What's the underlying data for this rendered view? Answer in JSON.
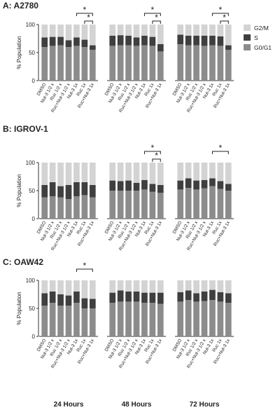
{
  "chart_data": [
    {
      "type": "bar",
      "stacked": true,
      "title": "A: A2780",
      "ylabel": "% Population",
      "categories": [
        "DMSO",
        "Nut-3 1/2 x",
        "Ruc 1/2 x",
        "Ruc+Nut-3 1/2 x",
        "Nut-3 1x",
        "Ruc 1x",
        "Ruc+Nut-3 1x",
        "DMSO",
        "Nut-3 1/2 x",
        "Ruc 1/2 x",
        "Ruc+Nut-3 1/2 x",
        "Nut-3 1x",
        "Ruc 1x",
        "Ruc+Nut-3 1x",
        "DMSO",
        "Nut-3 1/2 x",
        "Ruc 1/2 x",
        "Ruc+Nut-3 1/2 x",
        "Nut-3 1x",
        "Ruc 1x",
        "Ruc+Nut-3 1x"
      ],
      "series": [
        {
          "name": "G0/G1",
          "color": "#8c8c8c",
          "values": [
            60,
            62,
            63,
            60,
            62,
            60,
            55,
            62,
            63,
            63,
            62,
            63,
            62,
            52,
            65,
            63,
            63,
            62,
            63,
            62,
            55
          ]
        },
        {
          "name": "S",
          "color": "#3f3f3f",
          "values": [
            17,
            16,
            15,
            12,
            15,
            13,
            8,
            18,
            18,
            17,
            15,
            17,
            16,
            13,
            17,
            17,
            17,
            18,
            17,
            17,
            8
          ]
        },
        {
          "name": "G2/M",
          "color": "#d3d3d3",
          "values": [
            23,
            22,
            22,
            28,
            23,
            27,
            37,
            20,
            19,
            20,
            23,
            20,
            22,
            35,
            18,
            20,
            20,
            20,
            20,
            21,
            37
          ]
        }
      ],
      "ylim": [
        0,
        100
      ],
      "yticks": [
        0,
        50,
        100
      ],
      "legend": "right",
      "significance": [
        {
          "from": 4,
          "to": 6,
          "label": "*"
        },
        {
          "from": 5,
          "to": 6,
          "label": "*"
        },
        {
          "from": 11,
          "to": 13,
          "label": "*"
        },
        {
          "from": 12,
          "to": 13,
          "label": "*"
        },
        {
          "from": 18,
          "to": 20,
          "label": "*"
        },
        {
          "from": 19,
          "to": 20,
          "label": "*"
        }
      ]
    },
    {
      "type": "bar",
      "stacked": true,
      "title": "B: IGROV-1",
      "ylabel": "% Population",
      "categories": [
        "DMSO",
        "Nut-3 1/2 x",
        "Ruc 1/2 x",
        "Ruc+Nut-3 1/2 x",
        "Nut-3 1x",
        "Ruc 1x",
        "Ruc+Nut-3 1x",
        "DMSO",
        "Nut-3 1/2 x",
        "Ruc 1/2 x",
        "Ruc+Nut-3 1/2 x",
        "Nut-3 1x",
        "Ruc 1x",
        "Ruc+Nut-3 1x",
        "DMSO",
        "Nut-3 1/2 x",
        "Ruc 1/2 x",
        "Ruc+Nut-3 1/2 x",
        "Nut-3 1x",
        "Ruc 1x",
        "Ruc+Nut-3 1x"
      ],
      "series": [
        {
          "name": "G0/G1",
          "color": "#8c8c8c",
          "values": [
            38,
            40,
            38,
            35,
            40,
            42,
            38,
            50,
            50,
            50,
            50,
            52,
            48,
            46,
            52,
            55,
            52,
            54,
            58,
            53,
            50
          ]
        },
        {
          "name": "S",
          "color": "#3f3f3f",
          "values": [
            22,
            25,
            20,
            25,
            25,
            23,
            22,
            18,
            17,
            18,
            14,
            17,
            14,
            14,
            16,
            17,
            16,
            15,
            14,
            14,
            12
          ]
        },
        {
          "name": "G2/M",
          "color": "#d3d3d3",
          "values": [
            40,
            35,
            42,
            40,
            35,
            35,
            40,
            32,
            33,
            32,
            36,
            31,
            38,
            40,
            32,
            28,
            32,
            31,
            28,
            33,
            38
          ]
        }
      ],
      "ylim": [
        0,
        100
      ],
      "yticks": [
        0,
        50,
        100
      ],
      "significance": [
        {
          "from": 11,
          "to": 13,
          "label": "*"
        },
        {
          "from": 12,
          "to": 13,
          "label": "*"
        },
        {
          "from": 18,
          "to": 20,
          "label": "*"
        }
      ]
    },
    {
      "type": "bar",
      "stacked": true,
      "title": "C: OAW42",
      "ylabel": "% Population",
      "categories": [
        "DMSO",
        "Nut-3 1/2 x",
        "Ruc 1/2 x",
        "Ruc+Nut-3 1/2 x",
        "Nut-3 1x",
        "Ruc 1x",
        "Ruc+Nut-3 1x",
        "DMSO",
        "Nut-3 1/2 x",
        "Ruc 1/2 x",
        "Ruc+Nut-3 1/2 x",
        "Nut-3 1x",
        "Ruc 1x",
        "Ruc+Nut-3 1x",
        "DMSO",
        "Nut-3 1/2 x",
        "Ruc 1/2 x",
        "Ruc+Nut-3 1/2 x",
        "Nut-3 1x",
        "Ruc 1x",
        "Ruc+Nut-3 1x"
      ],
      "series": [
        {
          "name": "G0/G1",
          "color": "#8c8c8c",
          "values": [
            55,
            60,
            55,
            55,
            60,
            50,
            50,
            60,
            62,
            62,
            62,
            60,
            60,
            58,
            62,
            65,
            62,
            63,
            65,
            62,
            60
          ]
        },
        {
          "name": "S",
          "color": "#3f3f3f",
          "values": [
            22,
            20,
            20,
            18,
            20,
            18,
            17,
            18,
            20,
            18,
            18,
            18,
            18,
            20,
            17,
            17,
            15,
            17,
            18,
            17,
            17
          ]
        },
        {
          "name": "G2/M",
          "color": "#d3d3d3",
          "values": [
            23,
            20,
            25,
            27,
            20,
            32,
            33,
            22,
            18,
            20,
            20,
            22,
            22,
            22,
            21,
            18,
            23,
            20,
            17,
            21,
            23
          ]
        }
      ],
      "ylim": [
        0,
        100
      ],
      "yticks": [
        0,
        50,
        100
      ],
      "significance": [
        {
          "from": 4,
          "to": 6,
          "label": "*"
        }
      ]
    }
  ],
  "x_groups": [
    "24 Hours",
    "48 Hours",
    "72 Hours"
  ]
}
